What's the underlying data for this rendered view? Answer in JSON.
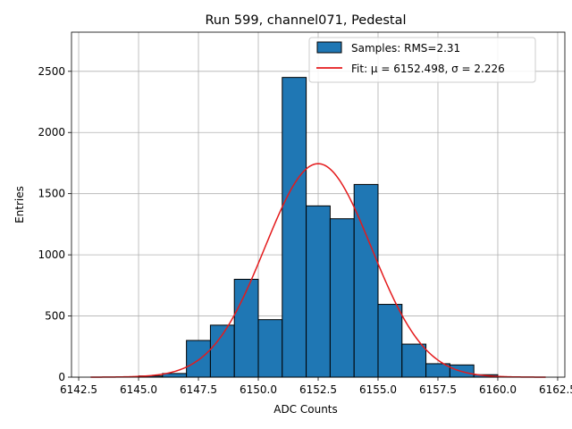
{
  "chart_data": {
    "type": "bar",
    "title": "Run 599, channel071, Pedestal",
    "xlabel": "ADC Counts",
    "ylabel": "Entries",
    "xlim": [
      6142.2,
      6162.8
    ],
    "ylim": [
      0,
      2820
    ],
    "xticks": [
      6142.5,
      6145.0,
      6147.5,
      6150.0,
      6152.5,
      6155.0,
      6157.5,
      6160.0,
      6162.5
    ],
    "xtick_labels": [
      "6142.5",
      "6145.0",
      "6147.5",
      "6150.0",
      "6152.5",
      "6155.0",
      "6157.5",
      "6160.0",
      "6162.5"
    ],
    "yticks": [
      0,
      500,
      1000,
      1500,
      2000,
      2500
    ],
    "ytick_labels": [
      "0",
      "500",
      "1000",
      "1500",
      "2000",
      "2500"
    ],
    "grid": true,
    "legend_position": "top-right",
    "histogram": {
      "name": "Samples: RMS=2.31",
      "color": "#1f77b4",
      "edgecolor": "#000000",
      "bin_edges": [
        6145,
        6146,
        6147,
        6148,
        6149,
        6150,
        6151,
        6152,
        6153,
        6154,
        6155,
        6156,
        6157,
        6158,
        6159,
        6160
      ],
      "counts": [
        10,
        30,
        300,
        425,
        800,
        470,
        2450,
        1400,
        1295,
        1575,
        595,
        270,
        110,
        100,
        20
      ]
    },
    "fit": {
      "name": "Fit: μ = 6152.498, σ = 2.226",
      "color": "#e41a1c",
      "mu": 6152.498,
      "sigma": 2.226,
      "amplitude": 1745,
      "x_range": [
        6143,
        6162
      ]
    }
  }
}
